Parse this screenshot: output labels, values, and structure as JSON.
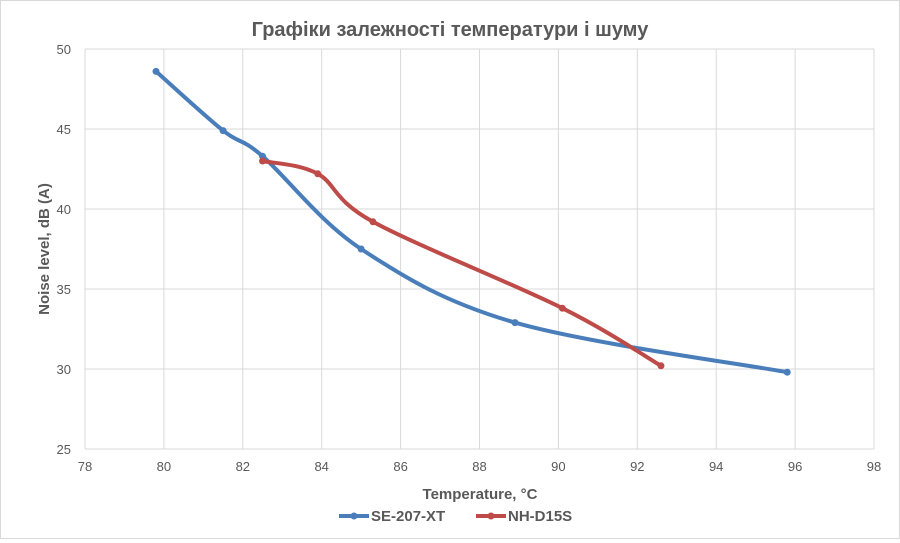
{
  "chart_data": {
    "type": "line",
    "title": "Графіки залежності температури і шуму",
    "xlabel": "Temperature, °C",
    "ylabel": "Noise level, dB (A)",
    "xlim": [
      78,
      98
    ],
    "ylim": [
      25,
      50
    ],
    "xticks": [
      78,
      80,
      82,
      84,
      86,
      88,
      90,
      92,
      94,
      96,
      98
    ],
    "yticks": [
      25,
      30,
      35,
      40,
      45,
      50
    ],
    "grid": true,
    "smooth": true,
    "legend_position": "bottom",
    "series": [
      {
        "name": "SE-207-XT",
        "color": "#4a7ebb",
        "x": [
          79.8,
          81.5,
          82.5,
          85.0,
          88.9,
          95.8
        ],
        "y": [
          48.6,
          44.9,
          43.3,
          37.5,
          32.9,
          29.8
        ]
      },
      {
        "name": "NH-D15S",
        "color": "#be4b48",
        "x": [
          82.5,
          83.9,
          85.3,
          90.1,
          92.6
        ],
        "y": [
          43.0,
          42.2,
          39.2,
          33.8,
          30.2
        ]
      }
    ]
  }
}
